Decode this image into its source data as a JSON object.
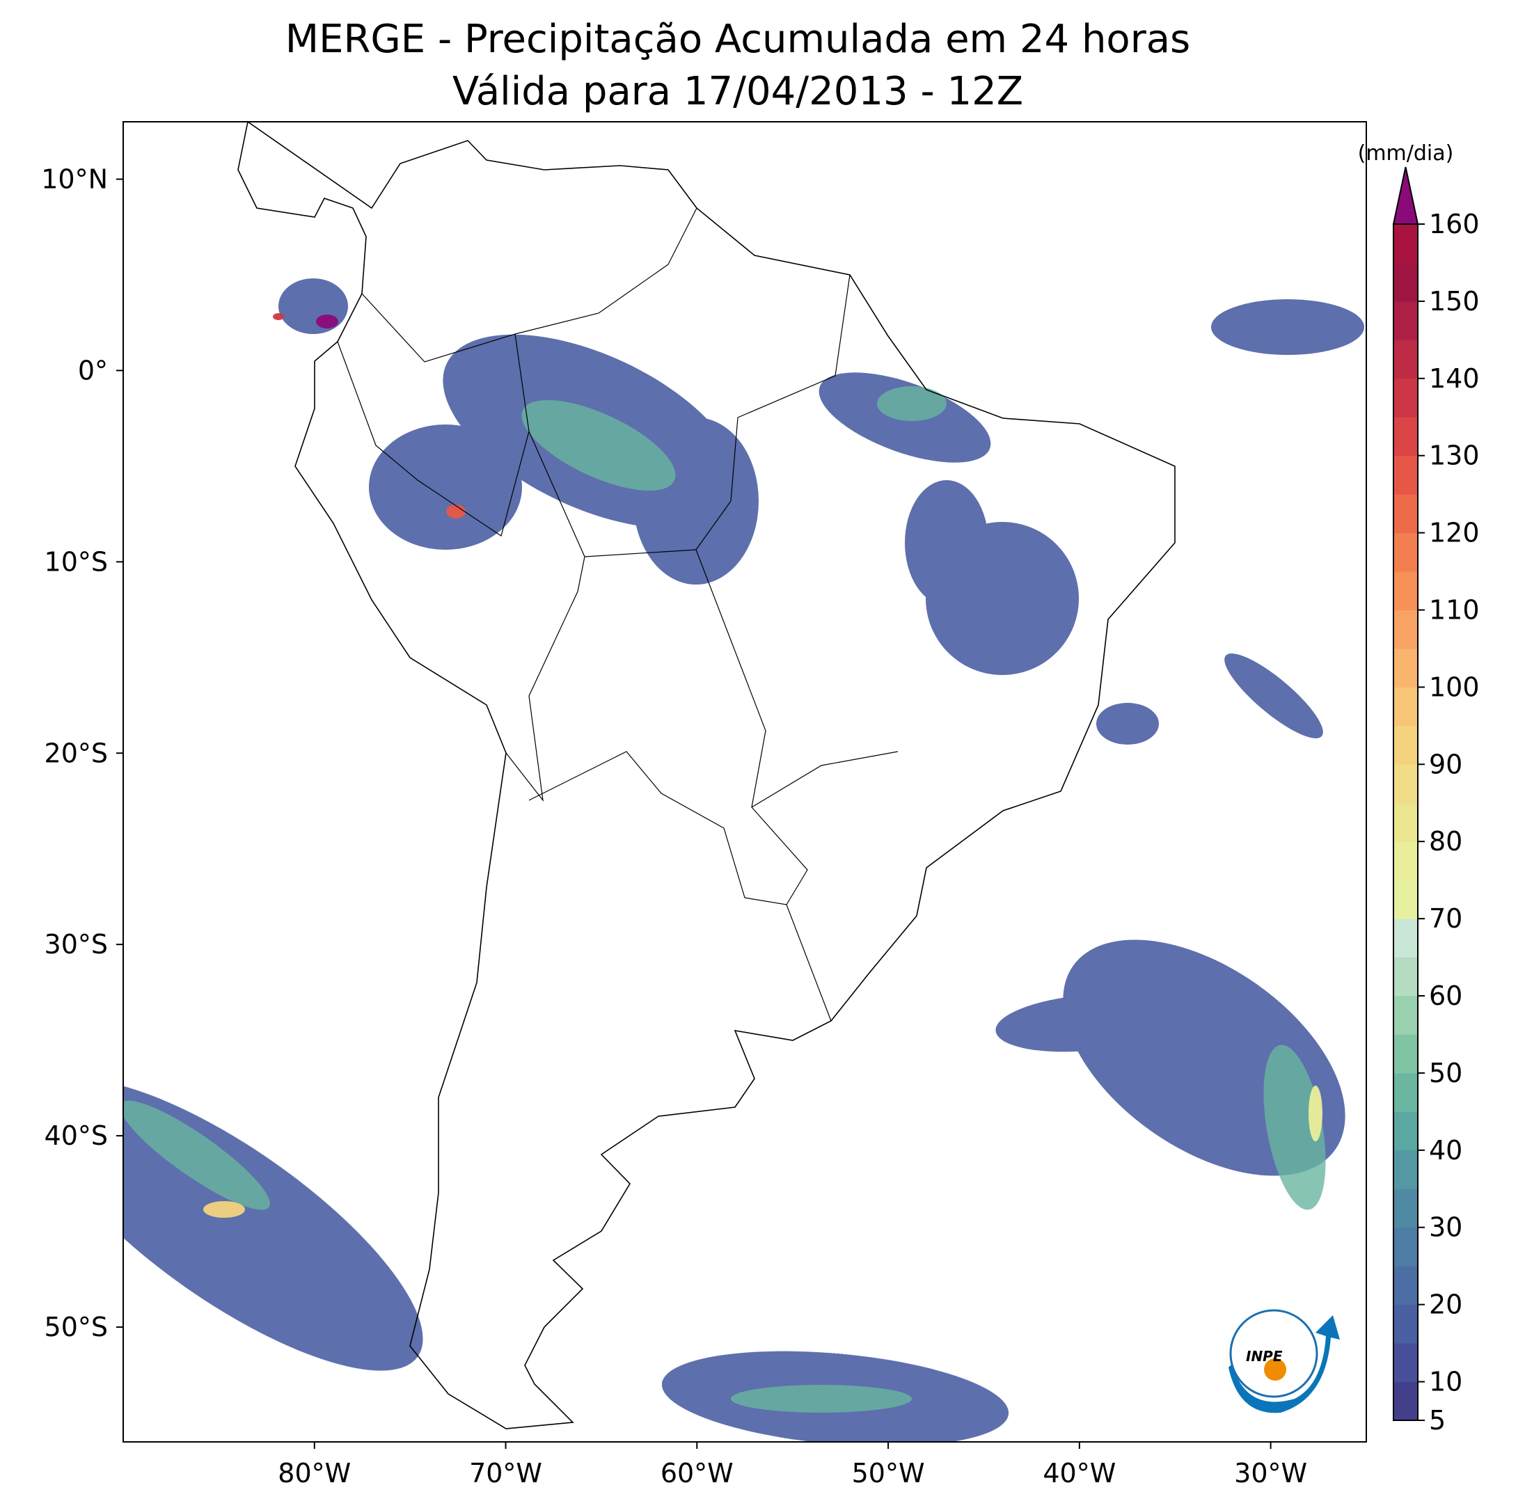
{
  "title": [
    "MERGE - Precipitação Acumulada em 24 horas",
    "Válida para 17/04/2013 - 12Z"
  ],
  "map": {
    "lonlim": [
      -90,
      -25
    ],
    "latlim": [
      -56,
      13
    ],
    "xticks": [
      {
        "value": -80,
        "label": "80°W"
      },
      {
        "value": -70,
        "label": "70°W"
      },
      {
        "value": -60,
        "label": "60°W"
      },
      {
        "value": -50,
        "label": "50°W"
      },
      {
        "value": -40,
        "label": "40°W"
      },
      {
        "value": -30,
        "label": "30°W"
      }
    ],
    "yticks": [
      {
        "value": 10,
        "label": "10°N"
      },
      {
        "value": 0,
        "label": "0°"
      },
      {
        "value": -10,
        "label": "10°S"
      },
      {
        "value": -20,
        "label": "20°S"
      },
      {
        "value": -30,
        "label": "30°S"
      },
      {
        "value": -40,
        "label": "40°S"
      },
      {
        "value": -50,
        "label": "50°S"
      }
    ]
  },
  "colorbar": {
    "label": "(mm/dia)",
    "lim": [
      5,
      160
    ],
    "ticks": [
      5,
      10,
      20,
      30,
      40,
      50,
      60,
      70,
      80,
      90,
      100,
      110,
      120,
      130,
      140,
      150,
      160
    ],
    "levels": [
      5,
      10,
      15,
      20,
      25,
      30,
      35,
      40,
      45,
      50,
      55,
      60,
      65,
      70,
      75,
      80,
      85,
      90,
      95,
      100,
      105,
      110,
      115,
      120,
      125,
      130,
      135,
      140,
      145,
      150,
      155,
      160
    ],
    "colors": [
      "#443f8b",
      "#48509a",
      "#4b5fa3",
      "#4c6ea5",
      "#4d7ca4",
      "#4f89a3",
      "#5398a2",
      "#5ba7a1",
      "#6ab6a0",
      "#80c4a4",
      "#99d0ad",
      "#b4dcc0",
      "#cae6d6",
      "#e6f09e",
      "#eaee9a",
      "#ece590",
      "#f1dd88",
      "#f4d27e",
      "#f8c577",
      "#f9b56d",
      "#f8a363",
      "#f69158",
      "#f37e50",
      "#ee6b4a",
      "#e65747",
      "#db4546",
      "#cd3745",
      "#be2b44",
      "#ad1f44",
      "#9d1540",
      "#a8143f"
    ],
    "extend_color": "#8b0a7a"
  },
  "logo": "INPE"
}
